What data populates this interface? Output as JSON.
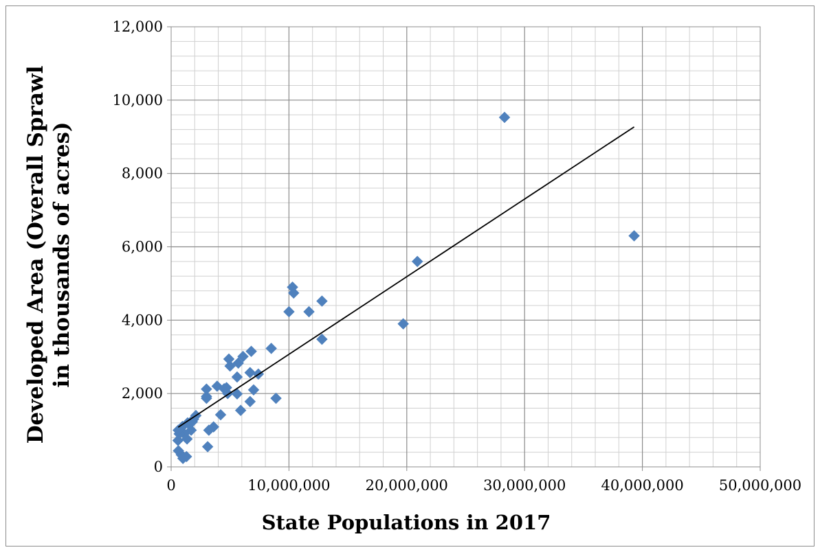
{
  "chart_data": {
    "type": "scatter",
    "title": "",
    "xlabel": "State Populations in 2017",
    "ylabel_line1": "Developed Area (Overall Sprawl",
    "ylabel_line2": "in thousands of acres)",
    "xlim": [
      0,
      50000000
    ],
    "ylim": [
      0,
      12000
    ],
    "x_major_step": 10000000,
    "x_minor_step": 2000000,
    "y_major_step": 2000,
    "y_minor_step": 400,
    "x_tick_labels": [
      "0",
      "10,000,000",
      "20,000,000",
      "30,000,000",
      "40,000,000",
      "50,000,000"
    ],
    "y_tick_labels": [
      "0",
      "2,000",
      "4,000",
      "6,000",
      "8,000",
      "10,000",
      "12,000"
    ],
    "grid": true,
    "legend": "none",
    "marker_color": "#4f81bd",
    "trendline_color": "#000000",
    "trendline": {
      "x": [
        600000,
        39300000
      ],
      "y": [
        1080,
        9270
      ]
    },
    "series": [
      {
        "x": [
          39300000,
          28300000,
          20900000,
          19700000,
          12800000,
          12800000,
          11700000,
          10400000,
          10300000,
          10000000,
          8900000,
          8500000,
          7400000,
          7000000,
          6800000,
          6700000,
          6700000,
          6100000,
          5900000,
          5700000,
          5600000,
          5600000,
          5000000,
          4900000,
          4800000,
          4700000,
          4500000,
          4200000,
          3900000,
          3600000,
          3200000,
          3100000,
          3000000,
          3000000,
          3000000,
          2100000,
          1900000,
          1800000,
          1700000,
          1400000,
          1300000,
          1350000,
          1100000,
          1000000,
          960000,
          860000,
          760000,
          680000,
          620000,
          600000,
          580000
        ],
        "y": [
          6300,
          9530,
          5600,
          3900,
          4520,
          3480,
          4230,
          4740,
          4900,
          4230,
          1870,
          3230,
          2530,
          2100,
          3150,
          1780,
          2570,
          3010,
          1540,
          2830,
          2450,
          1990,
          2750,
          2940,
          2000,
          2160,
          2130,
          1420,
          2200,
          1090,
          1000,
          550,
          2120,
          1920,
          1870,
          1400,
          1300,
          1230,
          1000,
          1200,
          280,
          760,
          900,
          230,
          1100,
          330,
          1020,
          900,
          440,
          1000,
          720
        ]
      }
    ]
  }
}
